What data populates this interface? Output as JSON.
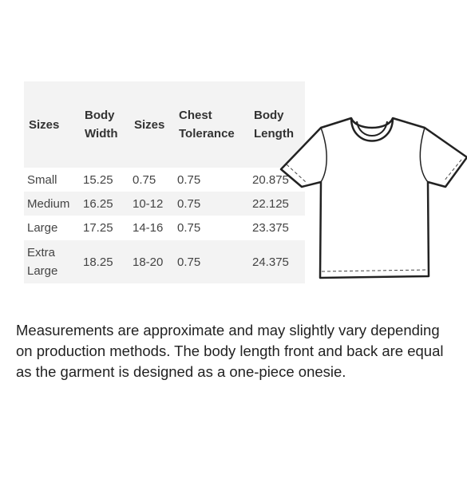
{
  "table": {
    "header": [
      "Sizes",
      "Body Width",
      "Sizes",
      "Chest Tolerance",
      "Body Length"
    ],
    "rows": [
      [
        "Small",
        "15.25",
        "0.75",
        "0.75",
        "20.875"
      ],
      [
        "Medium",
        "16.25",
        "10-12",
        "0.75",
        "22.125"
      ],
      [
        "Large",
        "17.25",
        "14-16",
        "0.75",
        "23.375"
      ],
      [
        "Extra Large",
        "18.25",
        "18-20",
        "0.75",
        "24.375"
      ]
    ]
  },
  "note": "Measurements are approximate and may slightly vary depending on production methods. The body length front and back are equal as the garment is designed as a one-piece onesie."
}
